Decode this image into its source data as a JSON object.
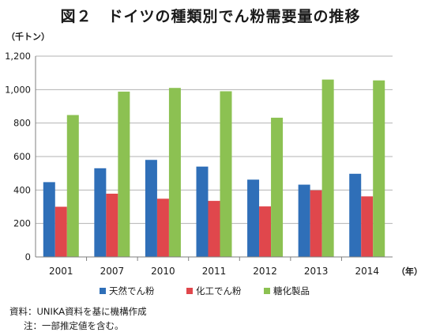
{
  "chart_data": {
    "type": "bar",
    "title": "図２　ドイツの種類別でん粉需要量の推移",
    "ylabel": "（千トン）",
    "xlabel": "（年）",
    "ylim": [
      0,
      1200
    ],
    "yticks": [
      "0",
      "200",
      "400",
      "600",
      "800",
      "1,000",
      "1,200"
    ],
    "ytick_values": [
      0,
      200,
      400,
      600,
      800,
      1000,
      1200
    ],
    "grid": true,
    "legend_position": "bottom",
    "categories": [
      "2001",
      "2007",
      "2010",
      "2011",
      "2012",
      "2013",
      "2014"
    ],
    "series": [
      {
        "name": "天然でん粉",
        "color": "#2f6fb8",
        "values": [
          447,
          530,
          580,
          540,
          462,
          432,
          497
        ]
      },
      {
        "name": "化工でん粉",
        "color": "#e0474c",
        "values": [
          300,
          378,
          348,
          335,
          302,
          398,
          362
        ]
      },
      {
        "name": "糖化製品",
        "color": "#8cc152",
        "values": [
          848,
          988,
          1010,
          990,
          832,
          1060,
          1055
        ]
      }
    ]
  },
  "notes": {
    "source": "資料：UNIKA資料を基に機構作成",
    "remark": "注：一部推定値を含む。"
  }
}
